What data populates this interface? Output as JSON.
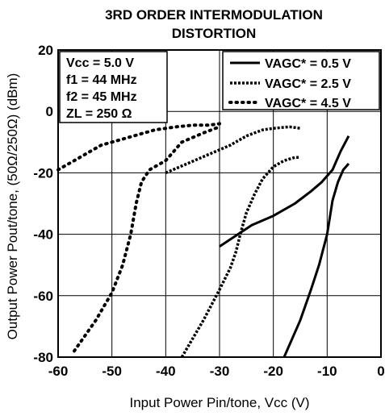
{
  "chart_data": {
    "type": "line",
    "title_line1": "3RD ORDER INTERMODULATION",
    "title_line2": "DISTORTION",
    "xlabel": "Input Power Pin/tone, Vcc  (V)",
    "ylabel": "Output Power Pout/tone, (50Ω/250Ω)  (dBm)",
    "xlim": [
      -60,
      0
    ],
    "ylim": [
      -80,
      20
    ],
    "xticks": [
      "-60",
      "-50",
      "-40",
      "-30",
      "-20",
      "-10",
      "0"
    ],
    "yticks": [
      "20",
      "0",
      "-20",
      "-40",
      "-60",
      "-80"
    ],
    "grid": true,
    "conditions": [
      "Vcc = 5.0 V",
      "f1 = 44 MHz",
      "f2 = 45 MHz",
      "ZL = 250 Ω"
    ],
    "legend_position": "top-right",
    "series": [
      {
        "name": "VAGC* = 0.5 V",
        "style": "solid",
        "curves": [
          [
            [
              -30,
              -44
            ],
            [
              -27,
              -40.5
            ],
            [
              -24,
              -37
            ],
            [
              -20,
              -34
            ],
            [
              -16,
              -30
            ],
            [
              -13,
              -26
            ],
            [
              -11,
              -23
            ],
            [
              -9,
              -19
            ],
            [
              -7.5,
              -13
            ],
            [
              -6,
              -8
            ]
          ],
          [
            [
              -18,
              -80
            ],
            [
              -15,
              -68
            ],
            [
              -13,
              -58
            ],
            [
              -11.5,
              -50
            ],
            [
              -10,
              -40
            ],
            [
              -9,
              -29
            ],
            [
              -8,
              -23
            ],
            [
              -7,
              -19
            ],
            [
              -6,
              -17
            ]
          ]
        ]
      },
      {
        "name": "VAGC* = 2.5 V",
        "style": "dashed",
        "curves": [
          [
            [
              -37,
              -80
            ],
            [
              -33,
              -68
            ],
            [
              -30,
              -58
            ],
            [
              -28,
              -51
            ],
            [
              -27,
              -46
            ],
            [
              -26,
              -39
            ],
            [
              -25,
              -33
            ],
            [
              -23.5,
              -27
            ],
            [
              -22,
              -22
            ],
            [
              -20,
              -18
            ],
            [
              -18,
              -16
            ],
            [
              -16,
              -15
            ],
            [
              -15,
              -15
            ]
          ],
          [
            [
              -40,
              -20
            ],
            [
              -36,
              -17
            ],
            [
              -32,
              -14
            ],
            [
              -28,
              -11
            ],
            [
              -25,
              -8
            ],
            [
              -22,
              -6
            ],
            [
              -20,
              -5.5
            ],
            [
              -17,
              -5
            ],
            [
              -15,
              -5.5
            ]
          ]
        ]
      },
      {
        "name": "VAGC* = 4.5 V",
        "style": "dotted",
        "curves": [
          [
            [
              -57,
              -78
            ],
            [
              -53,
              -68
            ],
            [
              -50,
              -59
            ],
            [
              -48,
              -50
            ],
            [
              -46.5,
              -40
            ],
            [
              -45.5,
              -30
            ],
            [
              -44.5,
              -23
            ],
            [
              -43,
              -19
            ],
            [
              -40,
              -16
            ],
            [
              -37,
              -10
            ],
            [
              -33,
              -7
            ],
            [
              -30,
              -5
            ]
          ],
          [
            [
              -60,
              -19
            ],
            [
              -57,
              -16
            ],
            [
              -54,
              -13
            ],
            [
              -52,
              -11
            ],
            [
              -50,
              -10
            ],
            [
              -46,
              -8
            ],
            [
              -42,
              -6
            ],
            [
              -38,
              -5
            ],
            [
              -35,
              -4.5
            ],
            [
              -32,
              -4.5
            ],
            [
              -30,
              -4
            ]
          ]
        ]
      }
    ]
  }
}
